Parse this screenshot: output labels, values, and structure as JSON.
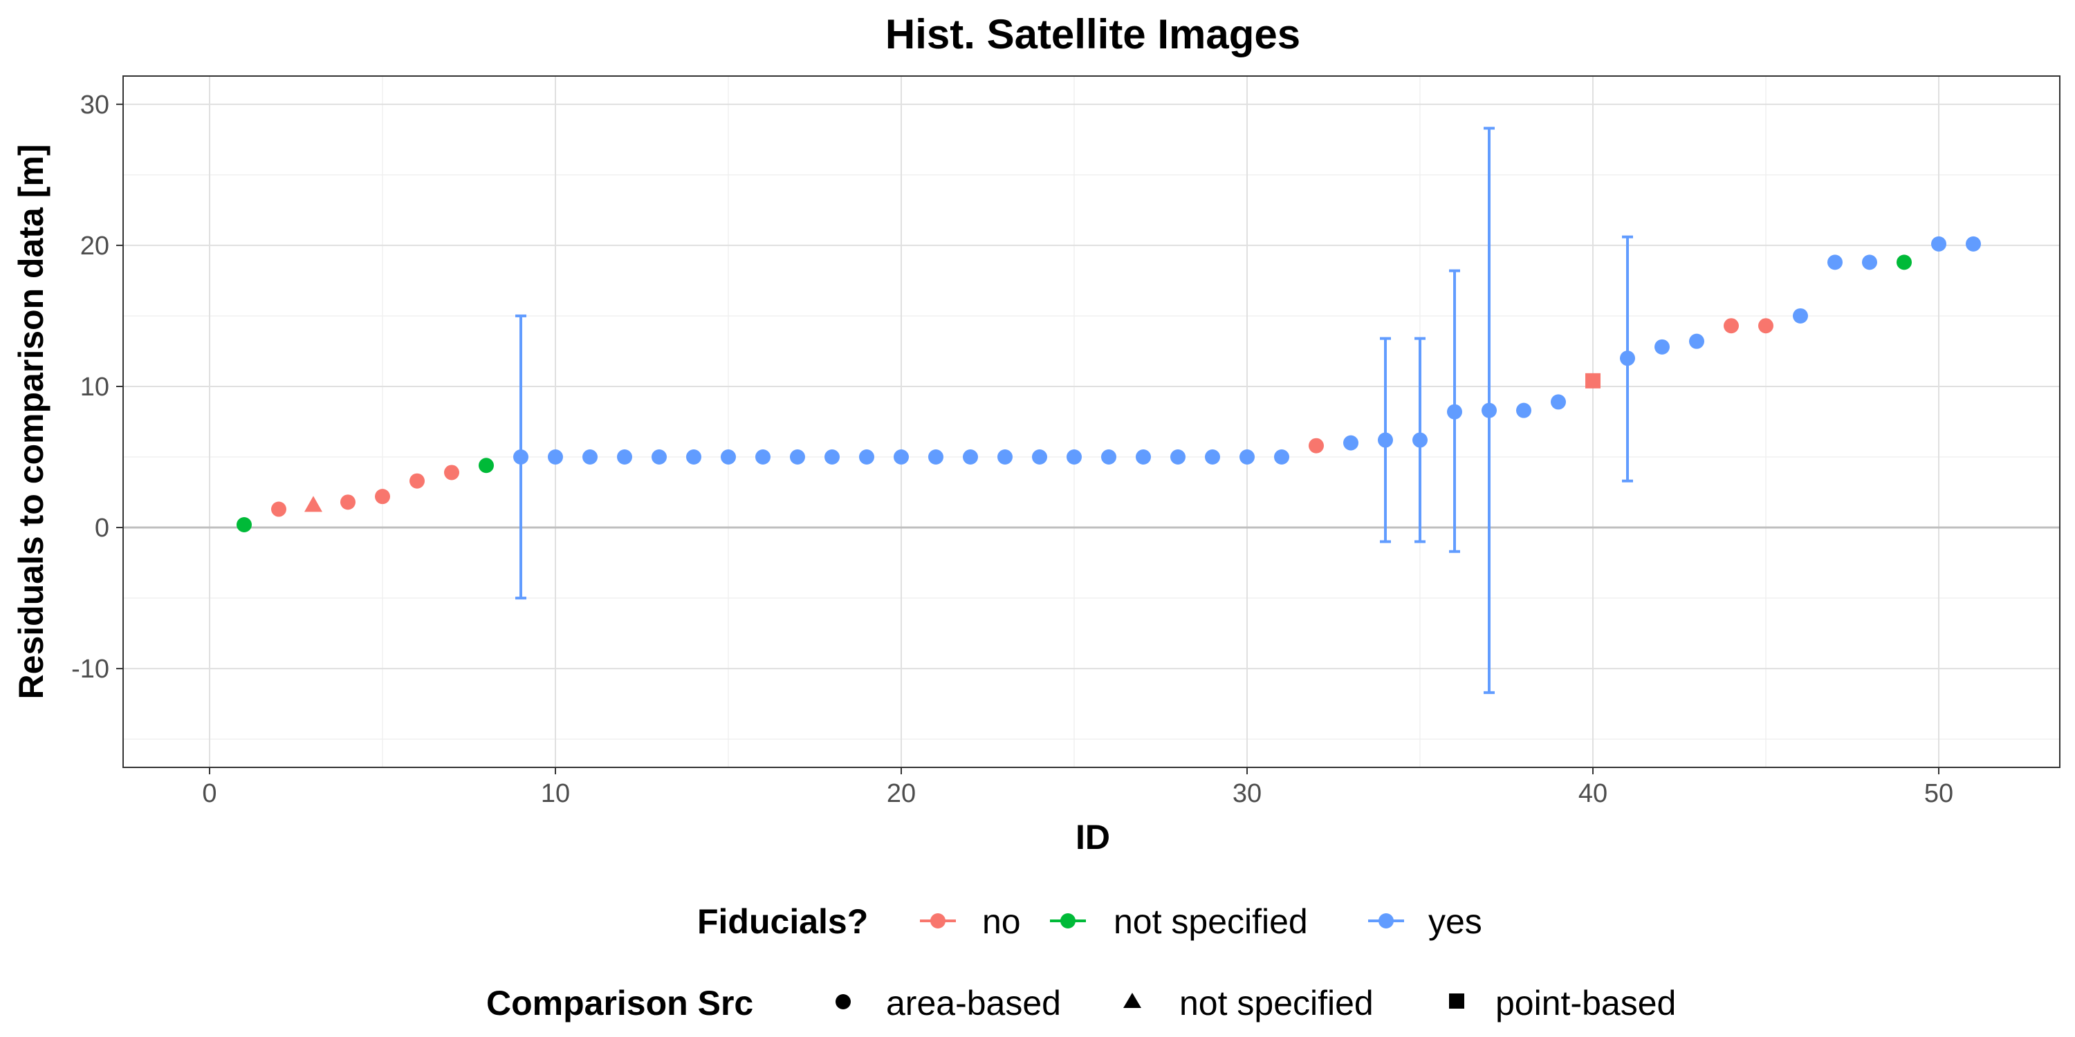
{
  "chart_data": {
    "type": "scatter",
    "title": "Hist. Satellite Images",
    "xlabel": "ID",
    "ylabel": "Residuals to comparison data [m]",
    "xlim": [
      -2.5,
      53.5
    ],
    "ylim": [
      -17,
      32
    ],
    "x_ticks": [
      0,
      10,
      20,
      30,
      40,
      50
    ],
    "y_ticks": [
      -10,
      0,
      10,
      20,
      30
    ],
    "grid": true,
    "legend_position": "bottom",
    "legends": {
      "color": {
        "title": "Fiducials?",
        "entries": [
          {
            "key": "no",
            "label": "no",
            "color": "#F8766D"
          },
          {
            "key": "not specified",
            "label": "not specified",
            "color": "#00BA38"
          },
          {
            "key": "yes",
            "label": "yes",
            "color": "#619CFF"
          }
        ]
      },
      "shape": {
        "title": "Comparison Src",
        "entries": [
          {
            "key": "area-based",
            "label": "area-based",
            "shape": "circle"
          },
          {
            "key": "not specified",
            "label": "not specified",
            "shape": "triangle"
          },
          {
            "key": "point-based",
            "label": "point-based",
            "shape": "square"
          }
        ]
      }
    },
    "points": [
      {
        "id": 1,
        "y": 0.2,
        "fid": "not specified",
        "src": "area-based"
      },
      {
        "id": 2,
        "y": 1.3,
        "fid": "no",
        "src": "area-based"
      },
      {
        "id": 3,
        "y": 1.6,
        "fid": "no",
        "src": "not specified"
      },
      {
        "id": 4,
        "y": 1.8,
        "fid": "no",
        "src": "area-based"
      },
      {
        "id": 5,
        "y": 2.2,
        "fid": "no",
        "src": "area-based"
      },
      {
        "id": 6,
        "y": 3.3,
        "fid": "no",
        "src": "area-based"
      },
      {
        "id": 7,
        "y": 3.9,
        "fid": "no",
        "src": "area-based"
      },
      {
        "id": 8,
        "y": 4.4,
        "fid": "not specified",
        "src": "area-based"
      },
      {
        "id": 9,
        "y": 5.0,
        "fid": "yes",
        "src": "area-based",
        "ymin": -5.0,
        "ymax": 15.0
      },
      {
        "id": 10,
        "y": 5.0,
        "fid": "yes",
        "src": "area-based"
      },
      {
        "id": 11,
        "y": 5.0,
        "fid": "yes",
        "src": "area-based"
      },
      {
        "id": 12,
        "y": 5.0,
        "fid": "yes",
        "src": "area-based"
      },
      {
        "id": 13,
        "y": 5.0,
        "fid": "yes",
        "src": "area-based"
      },
      {
        "id": 14,
        "y": 5.0,
        "fid": "yes",
        "src": "area-based"
      },
      {
        "id": 15,
        "y": 5.0,
        "fid": "yes",
        "src": "area-based"
      },
      {
        "id": 16,
        "y": 5.0,
        "fid": "yes",
        "src": "area-based"
      },
      {
        "id": 17,
        "y": 5.0,
        "fid": "yes",
        "src": "area-based"
      },
      {
        "id": 18,
        "y": 5.0,
        "fid": "yes",
        "src": "area-based"
      },
      {
        "id": 19,
        "y": 5.0,
        "fid": "yes",
        "src": "area-based"
      },
      {
        "id": 20,
        "y": 5.0,
        "fid": "yes",
        "src": "area-based"
      },
      {
        "id": 21,
        "y": 5.0,
        "fid": "yes",
        "src": "area-based"
      },
      {
        "id": 22,
        "y": 5.0,
        "fid": "yes",
        "src": "area-based"
      },
      {
        "id": 23,
        "y": 5.0,
        "fid": "yes",
        "src": "area-based"
      },
      {
        "id": 24,
        "y": 5.0,
        "fid": "yes",
        "src": "area-based"
      },
      {
        "id": 25,
        "y": 5.0,
        "fid": "yes",
        "src": "area-based"
      },
      {
        "id": 26,
        "y": 5.0,
        "fid": "yes",
        "src": "area-based"
      },
      {
        "id": 27,
        "y": 5.0,
        "fid": "yes",
        "src": "area-based"
      },
      {
        "id": 28,
        "y": 5.0,
        "fid": "yes",
        "src": "area-based"
      },
      {
        "id": 29,
        "y": 5.0,
        "fid": "yes",
        "src": "area-based"
      },
      {
        "id": 30,
        "y": 5.0,
        "fid": "yes",
        "src": "area-based"
      },
      {
        "id": 31,
        "y": 5.0,
        "fid": "yes",
        "src": "area-based"
      },
      {
        "id": 32,
        "y": 5.8,
        "fid": "no",
        "src": "area-based"
      },
      {
        "id": 33,
        "y": 6.0,
        "fid": "yes",
        "src": "area-based"
      },
      {
        "id": 34,
        "y": 6.2,
        "fid": "yes",
        "src": "area-based",
        "ymin": -1.0,
        "ymax": 13.4
      },
      {
        "id": 35,
        "y": 6.2,
        "fid": "yes",
        "src": "area-based",
        "ymin": -1.0,
        "ymax": 13.4
      },
      {
        "id": 36,
        "y": 8.2,
        "fid": "yes",
        "src": "area-based",
        "ymin": -1.7,
        "ymax": 18.2
      },
      {
        "id": 37,
        "y": 8.3,
        "fid": "yes",
        "src": "area-based",
        "ymin": -11.7,
        "ymax": 28.3
      },
      {
        "id": 38,
        "y": 8.3,
        "fid": "yes",
        "src": "area-based"
      },
      {
        "id": 39,
        "y": 8.9,
        "fid": "yes",
        "src": "area-based"
      },
      {
        "id": 40,
        "y": 10.4,
        "fid": "no",
        "src": "point-based"
      },
      {
        "id": 41,
        "y": 12.0,
        "fid": "yes",
        "src": "area-based",
        "ymin": 3.3,
        "ymax": 20.6
      },
      {
        "id": 42,
        "y": 12.8,
        "fid": "yes",
        "src": "area-based"
      },
      {
        "id": 43,
        "y": 13.2,
        "fid": "yes",
        "src": "area-based"
      },
      {
        "id": 44,
        "y": 14.3,
        "fid": "no",
        "src": "area-based"
      },
      {
        "id": 45,
        "y": 14.3,
        "fid": "no",
        "src": "area-based"
      },
      {
        "id": 46,
        "y": 15.0,
        "fid": "yes",
        "src": "area-based"
      },
      {
        "id": 47,
        "y": 18.8,
        "fid": "yes",
        "src": "area-based"
      },
      {
        "id": 48,
        "y": 18.8,
        "fid": "yes",
        "src": "area-based"
      },
      {
        "id": 49,
        "y": 18.8,
        "fid": "not specified",
        "src": "area-based"
      },
      {
        "id": 50,
        "y": 20.1,
        "fid": "yes",
        "src": "area-based"
      },
      {
        "id": 51,
        "y": 20.1,
        "fid": "yes",
        "src": "area-based"
      }
    ]
  }
}
